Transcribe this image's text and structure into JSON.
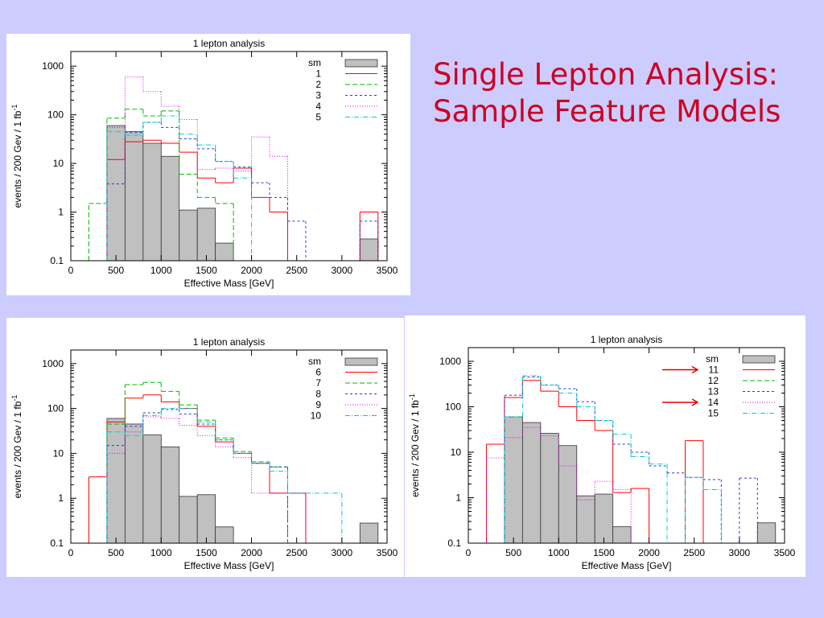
{
  "slide": {
    "title_line1": "Single Lepton Analysis:",
    "title_line2": "Sample Feature Models"
  },
  "colors": {
    "background": "#ccccff",
    "title": "#cc0022",
    "sm_fill": "#c0c0c0",
    "arrow": "#dd0000"
  },
  "chart_data": [
    {
      "type": "bar",
      "title": "1 lepton analysis",
      "xlabel": "Effective Mass [GeV]",
      "ylabel": "events / 200 Gev / 1 fb",
      "ylabel_sup": "-1",
      "xlim": [
        0,
        3500
      ],
      "ylim": [
        0.1,
        2000
      ],
      "yscale": "log",
      "xticks": [
        0,
        500,
        1000,
        1500,
        2000,
        2500,
        3000,
        3500
      ],
      "yticks": [
        0.1,
        1,
        10,
        100,
        1000
      ],
      "ytick_labels": [
        "0.1",
        "1",
        "10",
        "100",
        "1000"
      ],
      "bin_edges": [
        0,
        200,
        400,
        600,
        800,
        1000,
        1200,
        1400,
        1600,
        1800,
        2000,
        2200,
        2400,
        2600,
        2800,
        3000,
        3200,
        3400
      ],
      "legend_position": "top-right",
      "series": [
        {
          "name": "sm",
          "style": "filled",
          "color": "#c0c0c0",
          "values": [
            0,
            0,
            60,
            45,
            26,
            14,
            1.1,
            1.2,
            0.23,
            0,
            0,
            0,
            0,
            0,
            0,
            0,
            0.28
          ]
        },
        {
          "name": "1",
          "color": "#ff0000",
          "dash": "",
          "values": [
            0,
            0,
            12,
            28,
            30,
            26,
            17,
            5,
            4,
            8,
            2,
            1,
            0,
            0,
            0,
            0,
            1
          ]
        },
        {
          "name": "2",
          "color": "#00bb00",
          "dash": "6,3",
          "values": [
            0,
            1.5,
            85,
            130,
            95,
            120,
            6,
            2,
            1.5,
            0,
            0,
            0,
            0,
            0,
            0,
            0,
            0
          ]
        },
        {
          "name": "3",
          "color": "#3333dd",
          "dash": "3,3",
          "values": [
            0,
            0,
            3.8,
            43,
            70,
            55,
            32,
            20,
            11,
            8.5,
            4,
            2,
            0.65,
            0,
            0,
            0,
            0.65
          ]
        },
        {
          "name": "4",
          "color": "#dd00dd",
          "dash": "1,2",
          "values": [
            0,
            0,
            55,
            600,
            300,
            150,
            80,
            7.5,
            8,
            7,
            35,
            14,
            0,
            0,
            0,
            0,
            0
          ]
        },
        {
          "name": "5",
          "color": "#00cccc",
          "dash": "6,2,1,2",
          "values": [
            0,
            0,
            45,
            38,
            70,
            95,
            40,
            24,
            11,
            5,
            0,
            0,
            0,
            0,
            0,
            0,
            0
          ]
        }
      ]
    },
    {
      "type": "bar",
      "title": "1 lepton analysis",
      "xlabel": "Effective Mass [GeV]",
      "ylabel": "events / 200 Gev / 1 fb",
      "ylabel_sup": "-1",
      "xlim": [
        0,
        3500
      ],
      "ylim": [
        0.1,
        2000
      ],
      "yscale": "log",
      "xticks": [
        0,
        500,
        1000,
        1500,
        2000,
        2500,
        3000,
        3500
      ],
      "yticks": [
        0.1,
        1,
        10,
        100,
        1000
      ],
      "ytick_labels": [
        "0.1",
        "1",
        "10",
        "100",
        "1000"
      ],
      "bin_edges": [
        0,
        200,
        400,
        600,
        800,
        1000,
        1200,
        1400,
        1600,
        1800,
        2000,
        2200,
        2400,
        2600,
        2800,
        3000,
        3200,
        3400
      ],
      "legend_position": "top-right",
      "series": [
        {
          "name": "sm",
          "style": "filled",
          "color": "#c0c0c0",
          "values": [
            0,
            0,
            60,
            45,
            26,
            14,
            1.1,
            1.2,
            0.23,
            0,
            0,
            0,
            0,
            0,
            0,
            0,
            0.28
          ]
        },
        {
          "name": "6",
          "color": "#ff0000",
          "dash": "",
          "values": [
            0,
            3,
            50,
            170,
            200,
            140,
            100,
            40,
            18,
            10,
            6,
            1.3,
            1.3,
            0,
            0,
            0,
            0
          ]
        },
        {
          "name": "7",
          "color": "#00bb00",
          "dash": "6,3",
          "values": [
            0,
            0,
            45,
            340,
            380,
            240,
            120,
            55,
            22,
            11,
            6.5,
            5,
            0,
            0,
            0,
            0,
            0
          ]
        },
        {
          "name": "8",
          "color": "#3333dd",
          "dash": "3,3",
          "values": [
            0,
            0,
            15,
            40,
            80,
            95,
            75,
            45,
            20,
            10,
            6,
            5,
            0,
            0,
            0,
            0,
            0
          ]
        },
        {
          "name": "9",
          "color": "#dd00dd",
          "dash": "1,2",
          "values": [
            0,
            0,
            10,
            30,
            65,
            60,
            42,
            25,
            14,
            8,
            1.3,
            1.3,
            1.3,
            0,
            0,
            0,
            0
          ]
        },
        {
          "name": "10",
          "color": "#00cccc",
          "dash": "6,2,1,2",
          "values": [
            0,
            0,
            30,
            25,
            70,
            100,
            100,
            50,
            20,
            10,
            6,
            4,
            1.3,
            1.3,
            1.3,
            0,
            0
          ]
        }
      ]
    },
    {
      "type": "bar",
      "title": "1 lepton analysis",
      "xlabel": "Effective Mass [GeV]",
      "ylabel": "events / 200 Gev / 1 fb",
      "ylabel_sup": "-1",
      "xlim": [
        0,
        3500
      ],
      "ylim": [
        0.1,
        2000
      ],
      "yscale": "log",
      "xticks": [
        0,
        500,
        1000,
        1500,
        2000,
        2500,
        3000,
        3500
      ],
      "yticks": [
        0.1,
        1,
        10,
        100,
        1000
      ],
      "ytick_labels": [
        "0.1",
        "1",
        "10",
        "100",
        "1000"
      ],
      "bin_edges": [
        0,
        200,
        400,
        600,
        800,
        1000,
        1200,
        1400,
        1600,
        1800,
        2000,
        2200,
        2400,
        2600,
        2800,
        3000,
        3200,
        3400
      ],
      "legend_position": "top-right",
      "legend_arrows": [
        "11",
        "14"
      ],
      "series": [
        {
          "name": "sm",
          "style": "filled",
          "color": "#c0c0c0",
          "values": [
            0,
            0,
            60,
            45,
            26,
            14,
            1.1,
            1.2,
            0.23,
            0,
            0,
            0,
            0,
            0,
            0,
            0,
            0.28
          ]
        },
        {
          "name": "11",
          "color": "#ff0000",
          "dash": "",
          "values": [
            0,
            15,
            160,
            380,
            220,
            100,
            50,
            30,
            1.3,
            1.6,
            0,
            0,
            18,
            0,
            0,
            0,
            0
          ]
        },
        {
          "name": "12",
          "color": "#00bb00",
          "dash": "6,3",
          "values": [
            0,
            0,
            0,
            0,
            0,
            0,
            0,
            0,
            0,
            0,
            0,
            0,
            0,
            0,
            0,
            0,
            0
          ]
        },
        {
          "name": "13",
          "color": "#3333dd",
          "dash": "3,3",
          "values": [
            0,
            0,
            180,
            450,
            300,
            250,
            130,
            50,
            15,
            10,
            5,
            3.5,
            2.8,
            2.5,
            0,
            2.7,
            0
          ]
        },
        {
          "name": "14",
          "color": "#dd00dd",
          "dash": "1,2",
          "values": [
            0,
            7.5,
            21,
            35,
            23,
            5,
            0.9,
            2.3,
            1.5,
            0,
            0,
            0,
            0,
            0,
            0,
            0,
            0
          ]
        },
        {
          "name": "15",
          "color": "#00cccc",
          "dash": "6,2,1,2",
          "values": [
            0,
            0,
            60,
            480,
            300,
            200,
            100,
            50,
            25,
            8,
            5.5,
            0,
            2.8,
            1.5,
            0,
            0,
            0
          ]
        }
      ]
    }
  ]
}
